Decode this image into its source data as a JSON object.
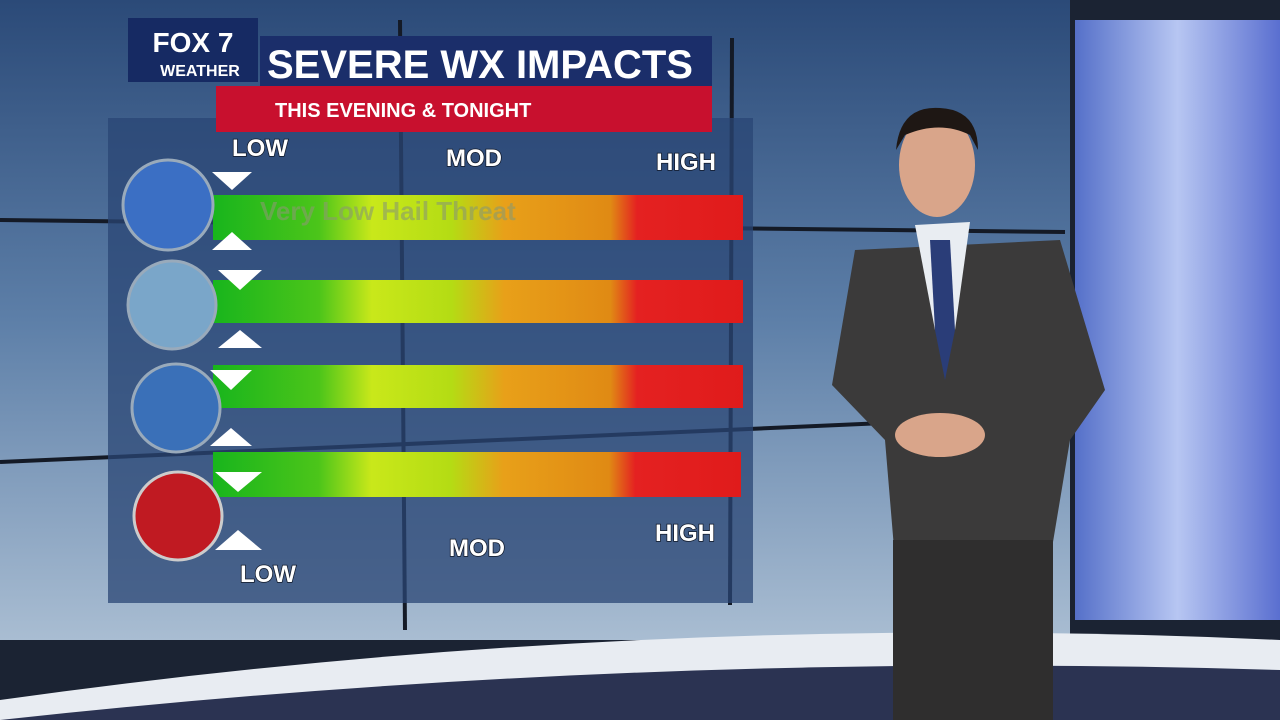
{
  "logo": {
    "brand": "FOX 7",
    "sub": "WEATHER"
  },
  "header": {
    "title": "SEVERE WX IMPACTS",
    "subtitle": "THIS EVENING & TONIGHT"
  },
  "scale_top": {
    "low": "LOW",
    "mod": "MOD",
    "high": "HIGH"
  },
  "hail_label": "Very Low Hail Threat",
  "scale_bottom": {
    "low": "LOW",
    "mod": "MOD",
    "high": "HIGH"
  }
}
